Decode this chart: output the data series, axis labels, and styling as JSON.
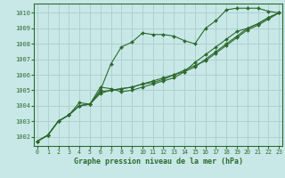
{
  "title": "Graphe pression niveau de la mer (hPa)",
  "bg_color": "#c8e8e8",
  "grid_color": "#b0d0d0",
  "line_color": "#2d6a2d",
  "xlim": [
    -0.3,
    23.3
  ],
  "ylim": [
    1001.4,
    1010.6
  ],
  "yticks": [
    1002,
    1003,
    1004,
    1005,
    1006,
    1007,
    1008,
    1009,
    1010
  ],
  "xticks": [
    0,
    1,
    2,
    3,
    4,
    5,
    6,
    7,
    8,
    9,
    10,
    11,
    12,
    13,
    14,
    15,
    16,
    17,
    18,
    19,
    20,
    21,
    22,
    23
  ],
  "series": [
    [
      1001.7,
      1002.1,
      1003.0,
      1003.4,
      1004.0,
      1004.1,
      1005.0,
      1006.7,
      1007.8,
      1008.1,
      1008.7,
      1008.6,
      1008.6,
      1008.5,
      1008.2,
      1008.0,
      1009.0,
      1009.5,
      1010.2,
      1010.3,
      1010.3,
      1010.3,
      1010.1,
      1010.0
    ],
    [
      1001.7,
      1002.1,
      1003.0,
      1003.4,
      1004.2,
      1004.1,
      1005.2,
      1005.1,
      1004.9,
      1005.0,
      1005.2,
      1005.4,
      1005.6,
      1005.8,
      1006.2,
      1006.8,
      1007.3,
      1007.8,
      1008.3,
      1008.8,
      1009.0,
      1009.3,
      1009.7,
      1010.0
    ],
    [
      1001.7,
      1002.1,
      1003.0,
      1003.4,
      1004.0,
      1004.1,
      1004.8,
      1005.0,
      1005.1,
      1005.2,
      1005.4,
      1005.6,
      1005.8,
      1006.0,
      1006.2,
      1006.5,
      1007.0,
      1007.5,
      1008.0,
      1008.5,
      1009.0,
      1009.3,
      1009.7,
      1010.0
    ],
    [
      1001.7,
      1002.1,
      1003.0,
      1003.4,
      1004.0,
      1004.1,
      1004.9,
      1005.0,
      1005.1,
      1005.2,
      1005.4,
      1005.5,
      1005.7,
      1006.0,
      1006.3,
      1006.6,
      1006.9,
      1007.4,
      1007.9,
      1008.4,
      1008.9,
      1009.2,
      1009.6,
      1010.0
    ]
  ]
}
